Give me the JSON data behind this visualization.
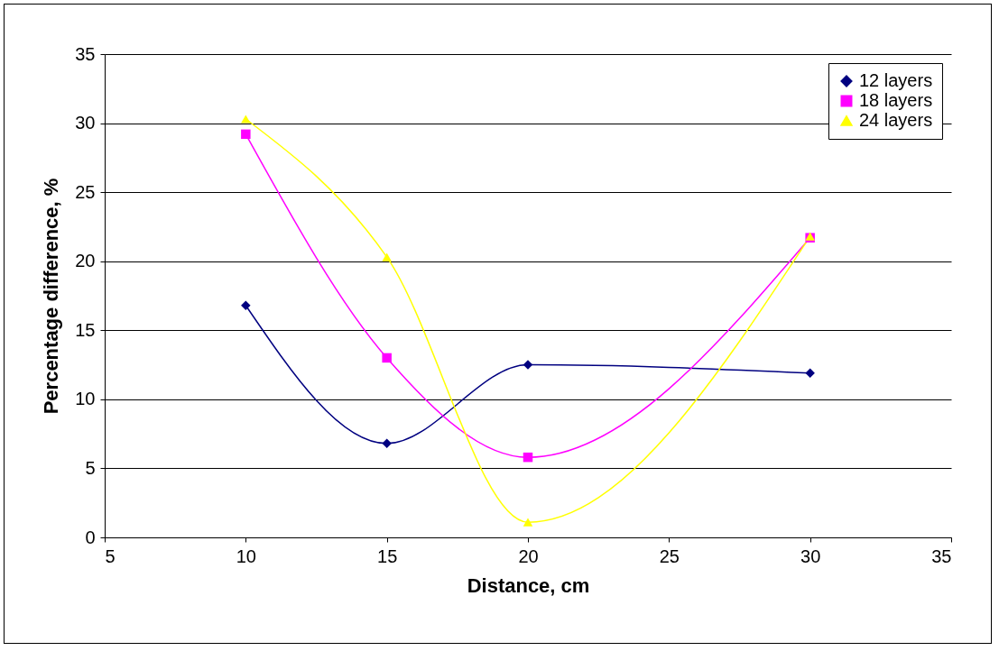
{
  "chart_data": {
    "type": "line",
    "xlabel": "Distance, cm",
    "ylabel": "Percentage difference, %",
    "x": [
      10,
      15,
      20,
      30
    ],
    "series": [
      {
        "name": "12 layers",
        "color": "#000080",
        "marker": "diamond",
        "values": [
          16.8,
          6.8,
          12.5,
          11.9
        ]
      },
      {
        "name": "18 layers",
        "color": "#ff00ff",
        "marker": "square",
        "values": [
          29.2,
          13.0,
          5.8,
          21.7
        ]
      },
      {
        "name": "24 layers",
        "color": "#ffff00",
        "marker": "triangle",
        "values": [
          30.3,
          20.3,
          1.1,
          21.8
        ]
      }
    ],
    "xlim": [
      5,
      35
    ],
    "xticks": [
      5,
      10,
      15,
      20,
      25,
      30,
      35
    ],
    "ylim": [
      0,
      35
    ],
    "yticks": [
      0,
      5,
      10,
      15,
      20,
      25,
      30,
      35
    ],
    "grid": "y",
    "legend": "top right",
    "line_style": "solid"
  }
}
